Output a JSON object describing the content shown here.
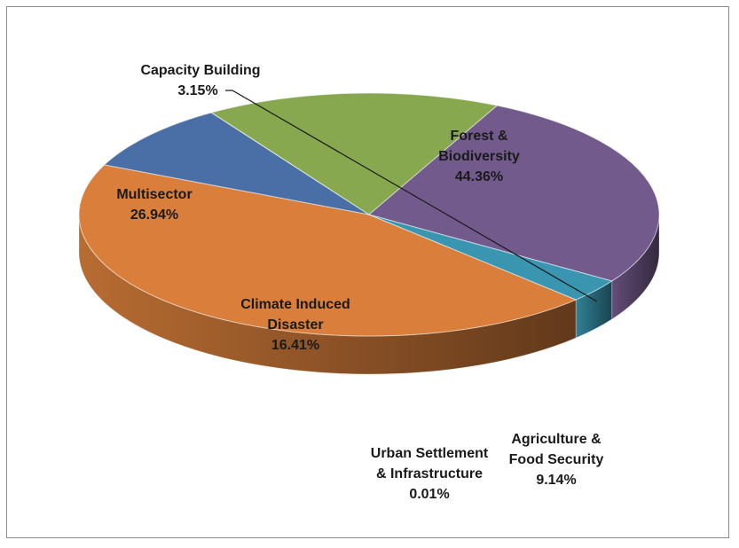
{
  "chart_data": {
    "type": "pie",
    "style": "3d-exploded-none",
    "slices": [
      {
        "label": [
          "Forest &",
          "Biodiversity"
        ],
        "value": 44.36,
        "value_label": "44.36%",
        "color": "#D97F3B"
      },
      {
        "label": [
          "Agriculture &",
          "Food Security"
        ],
        "value": 9.14,
        "value_label": "9.14%",
        "color": "#4A6FA6"
      },
      {
        "label": [
          "Urban Settlement",
          "& Infrastructure"
        ],
        "value": 0.01,
        "value_label": "0.01%",
        "color": "#3F5F8F"
      },
      {
        "label": [
          "Climate Induced",
          "Disaster"
        ],
        "value": 16.41,
        "value_label": "16.41%",
        "color": "#88A850"
      },
      {
        "label": [
          "Multisector"
        ],
        "value": 26.94,
        "value_label": "26.94%",
        "color": "#735A8D"
      },
      {
        "label": [
          "Capacity Building"
        ],
        "value": 3.15,
        "value_label": "3.15%",
        "color": "#3A96B0"
      }
    ],
    "legend": "none"
  }
}
